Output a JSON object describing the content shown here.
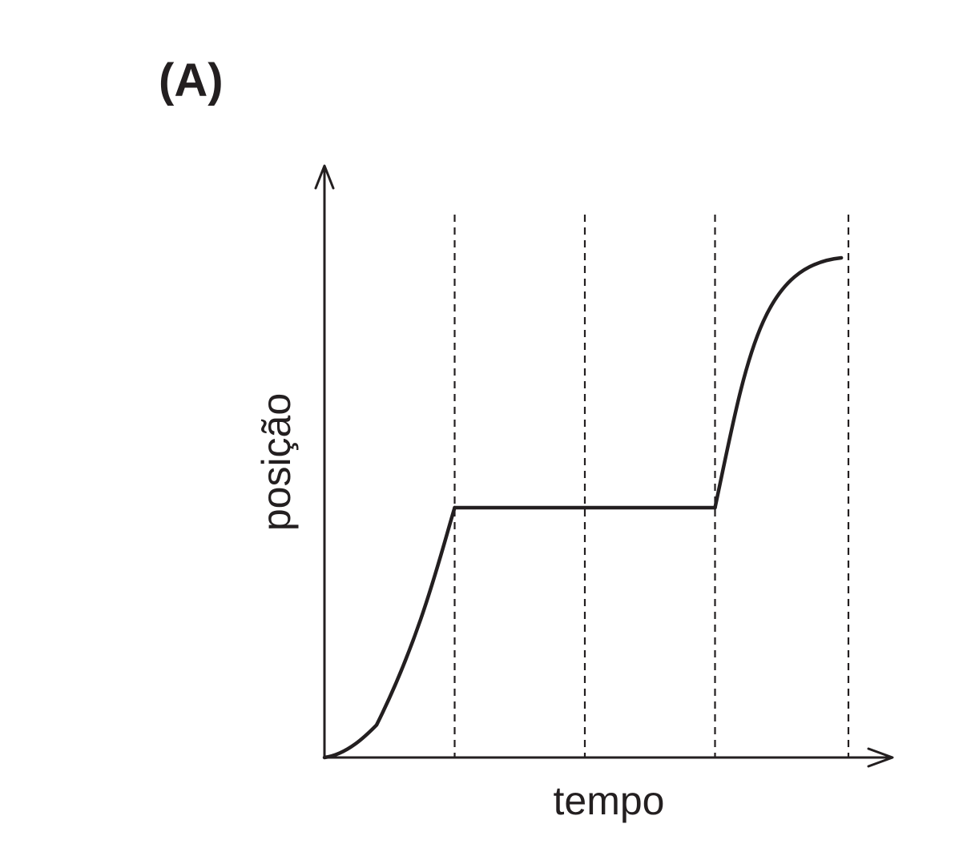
{
  "figure": {
    "label": "(A)"
  },
  "colors": {
    "ink": "#231f20",
    "background": "#ffffff"
  },
  "chart_data": {
    "type": "line",
    "title": "",
    "xlabel": "tempo",
    "ylabel": "posição",
    "x_ticks": [],
    "y_ticks": [],
    "grid": false,
    "xlim": [
      0,
      4.3
    ],
    "ylim": [
      0,
      2.4
    ],
    "vertical_dashed_lines_x": [
      1,
      2,
      3,
      4
    ],
    "series": [
      {
        "segments": [
          {
            "shape": "accelerating-curve",
            "x": [
              0,
              0.4,
              1
            ],
            "y": [
              0,
              0.13,
              1
            ]
          },
          {
            "shape": "flat",
            "x": [
              1,
              3
            ],
            "y": [
              1,
              1
            ]
          },
          {
            "shape": "rising-then-leveling-curve",
            "x": [
              3,
              3.5,
              3.97
            ],
            "y": [
              1,
              1.96,
              2
            ]
          }
        ]
      }
    ]
  }
}
